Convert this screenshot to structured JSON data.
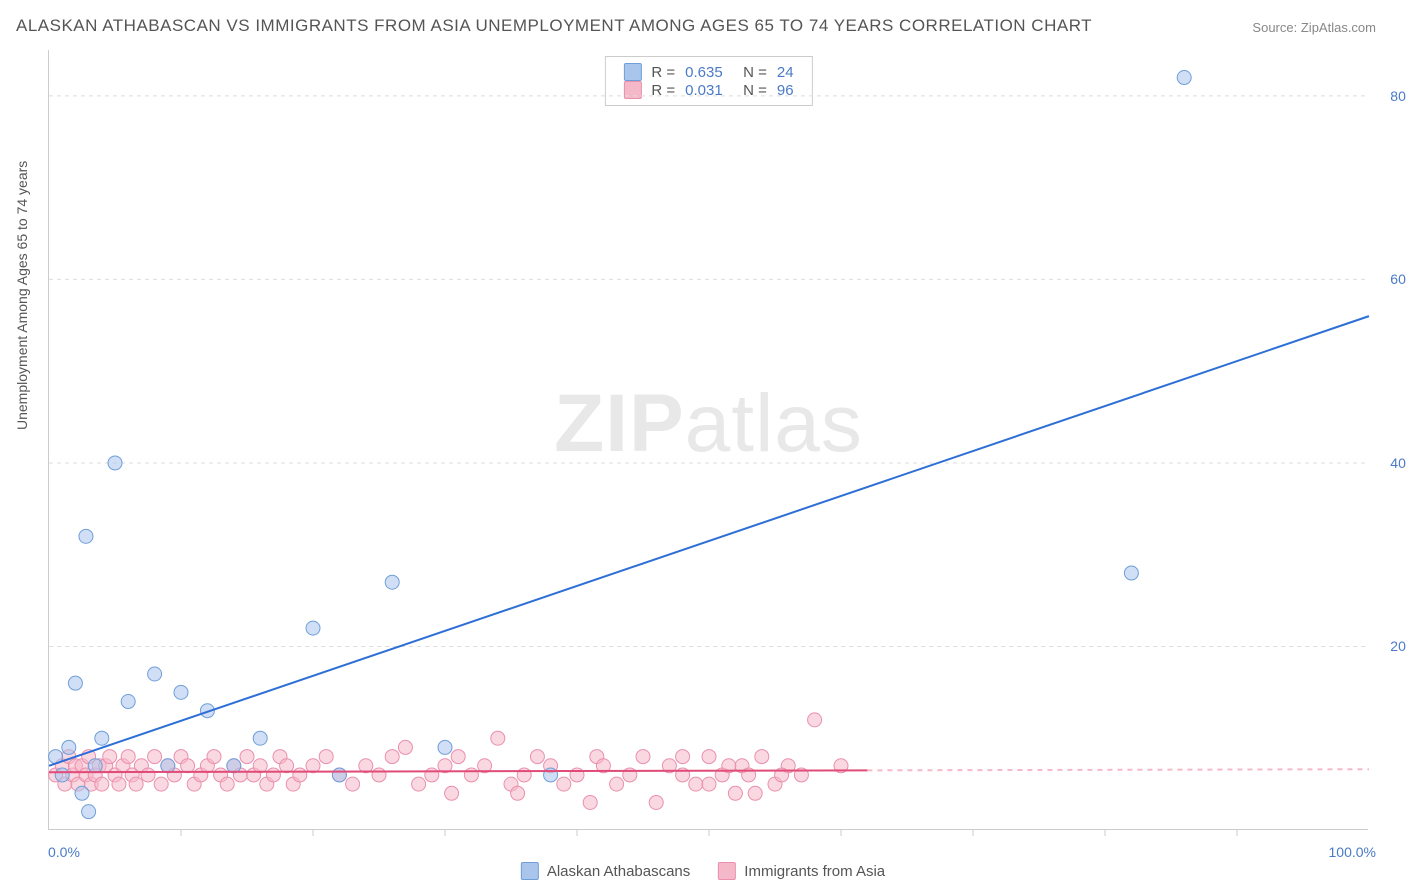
{
  "title": "ALASKAN ATHABASCAN VS IMMIGRANTS FROM ASIA UNEMPLOYMENT AMONG AGES 65 TO 74 YEARS CORRELATION CHART",
  "source_label": "Source:",
  "source_value": "ZipAtlas.com",
  "watermark_bold": "ZIP",
  "watermark_light": "atlas",
  "ylabel": "Unemployment Among Ages 65 to 74 years",
  "chart": {
    "type": "scatter",
    "xlim": [
      0,
      100
    ],
    "ylim": [
      0,
      85
    ],
    "xtick_min": "0.0%",
    "xtick_max": "100.0%",
    "yticks": [
      {
        "v": 20,
        "label": "20.0%"
      },
      {
        "v": 40,
        "label": "40.0%"
      },
      {
        "v": 60,
        "label": "60.0%"
      },
      {
        "v": 80,
        "label": "80.0%"
      }
    ],
    "xticks_minor": [
      10,
      20,
      30,
      40,
      50,
      60,
      70,
      80,
      90
    ],
    "background_color": "#ffffff",
    "grid_color": "#dddddd",
    "marker_radius": 7,
    "marker_opacity": 0.55,
    "line_width": 2
  },
  "series": [
    {
      "name": "Alaskan Athabascans",
      "legend_label": "Alaskan Athabascans",
      "color_fill": "#a9c5ec",
      "color_stroke": "#6f9fd8",
      "line_color": "#2e6fd6",
      "r_value": "0.635",
      "n_value": "24",
      "regression": {
        "x1": 0,
        "y1": 7,
        "x2": 100,
        "y2": 56
      },
      "regression_dash_after": 100,
      "points": [
        [
          0.5,
          8
        ],
        [
          1,
          6
        ],
        [
          1.5,
          9
        ],
        [
          2,
          16
        ],
        [
          2.5,
          4
        ],
        [
          2.8,
          32
        ],
        [
          3,
          2
        ],
        [
          3.5,
          7
        ],
        [
          4,
          10
        ],
        [
          5,
          40
        ],
        [
          6,
          14
        ],
        [
          8,
          17
        ],
        [
          9,
          7
        ],
        [
          10,
          15
        ],
        [
          12,
          13
        ],
        [
          14,
          7
        ],
        [
          16,
          10
        ],
        [
          20,
          22
        ],
        [
          22,
          6
        ],
        [
          26,
          27
        ],
        [
          30,
          9
        ],
        [
          38,
          6
        ],
        [
          82,
          28
        ],
        [
          86,
          82
        ]
      ]
    },
    {
      "name": "Immigrants from Asia",
      "legend_label": "Immigrants from Asia",
      "color_fill": "#f5b8c8",
      "color_stroke": "#ea8fae",
      "line_color": "#e04b78",
      "r_value": "0.031",
      "n_value": "96",
      "regression": {
        "x1": 0,
        "y1": 6.3,
        "x2": 62,
        "y2": 6.5
      },
      "regression_dash_after": 62,
      "regression_dash_to": 100,
      "points": [
        [
          0.5,
          6
        ],
        [
          1,
          7
        ],
        [
          1.2,
          5
        ],
        [
          1.5,
          8
        ],
        [
          1.8,
          6
        ],
        [
          2,
          7
        ],
        [
          2.2,
          5
        ],
        [
          2.5,
          7
        ],
        [
          2.8,
          6
        ],
        [
          3,
          8
        ],
        [
          3.2,
          5
        ],
        [
          3.5,
          6
        ],
        [
          3.8,
          7
        ],
        [
          4,
          5
        ],
        [
          4.3,
          7
        ],
        [
          4.6,
          8
        ],
        [
          5,
          6
        ],
        [
          5.3,
          5
        ],
        [
          5.6,
          7
        ],
        [
          6,
          8
        ],
        [
          6.3,
          6
        ],
        [
          6.6,
          5
        ],
        [
          7,
          7
        ],
        [
          7.5,
          6
        ],
        [
          8,
          8
        ],
        [
          8.5,
          5
        ],
        [
          9,
          7
        ],
        [
          9.5,
          6
        ],
        [
          10,
          8
        ],
        [
          10.5,
          7
        ],
        [
          11,
          5
        ],
        [
          11.5,
          6
        ],
        [
          12,
          7
        ],
        [
          12.5,
          8
        ],
        [
          13,
          6
        ],
        [
          13.5,
          5
        ],
        [
          14,
          7
        ],
        [
          14.5,
          6
        ],
        [
          15,
          8
        ],
        [
          15.5,
          6
        ],
        [
          16,
          7
        ],
        [
          16.5,
          5
        ],
        [
          17,
          6
        ],
        [
          17.5,
          8
        ],
        [
          18,
          7
        ],
        [
          18.5,
          5
        ],
        [
          19,
          6
        ],
        [
          20,
          7
        ],
        [
          21,
          8
        ],
        [
          22,
          6
        ],
        [
          23,
          5
        ],
        [
          24,
          7
        ],
        [
          25,
          6
        ],
        [
          26,
          8
        ],
        [
          27,
          9
        ],
        [
          28,
          5
        ],
        [
          29,
          6
        ],
        [
          30,
          7
        ],
        [
          30.5,
          4
        ],
        [
          31,
          8
        ],
        [
          32,
          6
        ],
        [
          33,
          7
        ],
        [
          34,
          10
        ],
        [
          35,
          5
        ],
        [
          35.5,
          4
        ],
        [
          36,
          6
        ],
        [
          37,
          8
        ],
        [
          38,
          7
        ],
        [
          39,
          5
        ],
        [
          40,
          6
        ],
        [
          41,
          3
        ],
        [
          41.5,
          8
        ],
        [
          42,
          7
        ],
        [
          43,
          5
        ],
        [
          44,
          6
        ],
        [
          45,
          8
        ],
        [
          46,
          3
        ],
        [
          47,
          7
        ],
        [
          48,
          6
        ],
        [
          49,
          5
        ],
        [
          50,
          8
        ],
        [
          51,
          6
        ],
        [
          52,
          4
        ],
        [
          52.5,
          7
        ],
        [
          53,
          6
        ],
        [
          54,
          8
        ],
        [
          55,
          5
        ],
        [
          56,
          7
        ],
        [
          57,
          6
        ],
        [
          58,
          12
        ],
        [
          48,
          8
        ],
        [
          50,
          5
        ],
        [
          51.5,
          7
        ],
        [
          53.5,
          4
        ],
        [
          55.5,
          6
        ],
        [
          60,
          7
        ]
      ]
    }
  ],
  "legend_top": {
    "r_label": "R =",
    "n_label": "N ="
  }
}
